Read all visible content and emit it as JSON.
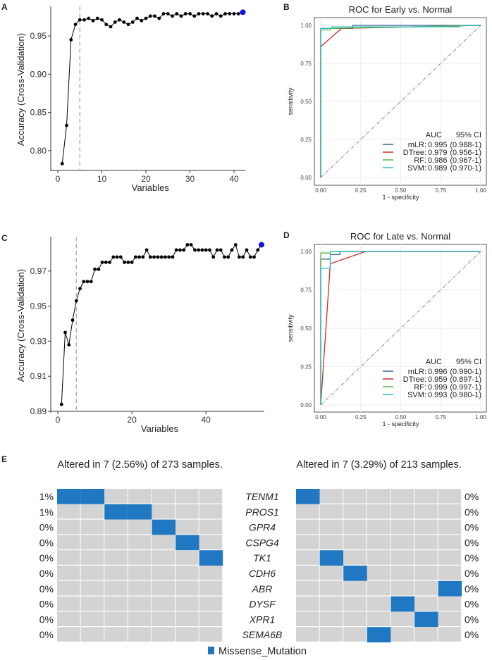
{
  "panel_labels": [
    "A",
    "B",
    "C",
    "D",
    "E"
  ],
  "colors": {
    "point": "#000000",
    "best_point": "#1010e0",
    "mLR": "#3a5f9a",
    "DTree": "#d7262b",
    "RF": "#5bb33a",
    "SVM": "#2bbdc8",
    "mutation": "#1f78c1",
    "empty_cell": "#d3d3d3",
    "reference_line": "#aaaaaa"
  },
  "chart_data": [
    {
      "panel": "A",
      "type": "line",
      "xlabel": "Variables",
      "ylabel": "Accuracy (Cross-Validation)",
      "xlim": [
        0,
        42
      ],
      "ylim": [
        0.775,
        0.985
      ],
      "xticks": [
        0,
        10,
        20,
        30,
        40
      ],
      "yticks": [
        0.8,
        0.85,
        0.9,
        0.95
      ],
      "vline_x": 5,
      "best_x": 42,
      "x": [
        1,
        2,
        3,
        4,
        5,
        6,
        7,
        8,
        9,
        10,
        11,
        12,
        13,
        14,
        15,
        16,
        17,
        18,
        19,
        20,
        21,
        22,
        23,
        24,
        25,
        26,
        27,
        28,
        29,
        30,
        31,
        32,
        33,
        34,
        35,
        36,
        37,
        38,
        39,
        40,
        41,
        42
      ],
      "y": [
        0.783,
        0.833,
        0.945,
        0.965,
        0.971,
        0.971,
        0.973,
        0.97,
        0.973,
        0.971,
        0.965,
        0.962,
        0.968,
        0.971,
        0.968,
        0.965,
        0.968,
        0.973,
        0.97,
        0.973,
        0.976,
        0.976,
        0.973,
        0.979,
        0.979,
        0.976,
        0.979,
        0.976,
        0.979,
        0.979,
        0.976,
        0.979,
        0.979,
        0.979,
        0.976,
        0.979,
        0.976,
        0.979,
        0.979,
        0.979,
        0.979,
        0.981
      ]
    },
    {
      "panel": "B",
      "type": "line",
      "title": "ROC for Early vs. Normal",
      "xlabel": "1 - specificity",
      "ylabel": "sensitivity",
      "xlim": [
        0,
        1
      ],
      "ylim": [
        0,
        1
      ],
      "xticks": [
        "0.00",
        "0.25",
        "0.50",
        "0.75",
        "1.00"
      ],
      "yticks": [
        "0.00",
        "0.25",
        "0.50",
        "0.75",
        "1.00"
      ],
      "grid": true,
      "legend_position": "bottom-right",
      "legend_header": [
        "AUC",
        "95% CI"
      ],
      "series": [
        {
          "name": "mLR",
          "auc": "0.995",
          "ci": "(0.988-1)",
          "points": [
            [
              0,
              0
            ],
            [
              0,
              0.98
            ],
            [
              0.2,
              0.98
            ],
            [
              0.2,
              1
            ],
            [
              1,
              1
            ]
          ]
        },
        {
          "name": "DTree",
          "auc": "0.979",
          "ci": "(0.956-1)",
          "points": [
            [
              0,
              0
            ],
            [
              0,
              0.86
            ],
            [
              0.13,
              0.98
            ],
            [
              1,
              1
            ]
          ]
        },
        {
          "name": "RF",
          "auc": "0.986",
          "ci": "(0.967-1)",
          "points": [
            [
              0,
              0
            ],
            [
              0,
              0.97
            ],
            [
              0.06,
              0.97
            ],
            [
              0.06,
              0.98
            ],
            [
              1,
              1
            ]
          ]
        },
        {
          "name": "SVM",
          "auc": "0.989",
          "ci": "(0.970-1)",
          "points": [
            [
              0,
              0
            ],
            [
              0,
              0.98
            ],
            [
              0.07,
              0.98
            ],
            [
              0.07,
              0.99
            ],
            [
              0.87,
              0.99
            ],
            [
              0.87,
              1
            ],
            [
              1,
              1
            ]
          ]
        }
      ]
    },
    {
      "panel": "C",
      "type": "line",
      "xlabel": "Variables",
      "ylabel": "Accuracy (Cross-Validation)",
      "xlim": [
        0,
        55
      ],
      "ylim": [
        0.89,
        0.988
      ],
      "xticks": [
        0,
        20,
        40
      ],
      "yticks": [
        0.89,
        0.91,
        0.93,
        0.95,
        0.97
      ],
      "vline_x": 5,
      "best_x": 55,
      "x": [
        1,
        2,
        3,
        4,
        5,
        6,
        7,
        8,
        9,
        10,
        11,
        12,
        13,
        14,
        15,
        16,
        17,
        18,
        19,
        20,
        21,
        22,
        23,
        24,
        25,
        26,
        27,
        28,
        29,
        30,
        31,
        32,
        33,
        34,
        35,
        36,
        37,
        38,
        39,
        40,
        41,
        42,
        43,
        44,
        45,
        46,
        47,
        48,
        49,
        50,
        51,
        52,
        53,
        54,
        55
      ],
      "y": [
        0.894,
        0.935,
        0.928,
        0.942,
        0.953,
        0.96,
        0.964,
        0.964,
        0.964,
        0.971,
        0.971,
        0.975,
        0.975,
        0.975,
        0.978,
        0.978,
        0.978,
        0.975,
        0.975,
        0.975,
        0.978,
        0.978,
        0.978,
        0.982,
        0.978,
        0.978,
        0.978,
        0.978,
        0.978,
        0.978,
        0.978,
        0.982,
        0.982,
        0.982,
        0.985,
        0.985,
        0.982,
        0.982,
        0.982,
        0.982,
        0.982,
        0.978,
        0.982,
        0.982,
        0.978,
        0.978,
        0.982,
        0.985,
        0.978,
        0.978,
        0.982,
        0.978,
        0.978,
        0.982,
        0.985
      ]
    },
    {
      "panel": "D",
      "type": "line",
      "title": "ROC for Late vs. Normal",
      "xlabel": "1 - specificity",
      "ylabel": "sensitivity",
      "xlim": [
        0,
        1
      ],
      "ylim": [
        0,
        1
      ],
      "xticks": [
        "0.00",
        "0.25",
        "0.50",
        "0.75",
        "1.00"
      ],
      "yticks": [
        "0.00",
        "0.25",
        "0.50",
        "0.75",
        "1.00"
      ],
      "grid": true,
      "legend_position": "bottom-right",
      "legend_header": [
        "AUC",
        "95% CI"
      ],
      "series": [
        {
          "name": "mLR",
          "auc": "0.996",
          "ci": "(0.990-1)",
          "points": [
            [
              0,
              0
            ],
            [
              0,
              0.95
            ],
            [
              0.06,
              0.95
            ],
            [
              0.06,
              0.98
            ],
            [
              0.12,
              0.98
            ],
            [
              0.12,
              1
            ],
            [
              1,
              1
            ]
          ]
        },
        {
          "name": "DTree",
          "auc": "0.959",
          "ci": "(0.897-1)",
          "points": [
            [
              0,
              0
            ],
            [
              0.06,
              0.92
            ],
            [
              0.28,
              1
            ],
            [
              1,
              1
            ]
          ]
        },
        {
          "name": "RF",
          "auc": "0.999",
          "ci": "(0.997-1)",
          "points": [
            [
              0,
              0
            ],
            [
              0,
              0.99
            ],
            [
              0.06,
              0.99
            ],
            [
              0.06,
              1
            ],
            [
              1,
              1
            ]
          ]
        },
        {
          "name": "SVM",
          "auc": "0.993",
          "ci": "(0.980-1)",
          "points": [
            [
              0,
              0
            ],
            [
              0,
              0.89
            ],
            [
              0.06,
              0.89
            ],
            [
              0.06,
              1
            ],
            [
              1,
              1
            ]
          ]
        }
      ]
    },
    {
      "panel": "E",
      "type": "heatmap",
      "genes": [
        "TENM1",
        "PROS1",
        "GPR4",
        "CSPG4",
        "TK1",
        "CDH6",
        "ABR",
        "DYSF",
        "XPR1",
        "SEMA6B"
      ],
      "legend": "Missense_Mutation",
      "left": {
        "title": "Altered in 7 (2.56%) of 273 samples.",
        "columns": 7,
        "percent": [
          "1%",
          "1%",
          "0%",
          "0%",
          "0%",
          "0%",
          "0%",
          "0%",
          "0%",
          "0%"
        ],
        "mutated": [
          [
            0,
            1
          ],
          [
            2,
            3
          ],
          [
            4
          ],
          [
            5
          ],
          [
            6
          ],
          [],
          [],
          [],
          [],
          []
        ]
      },
      "right": {
        "title": "Altered in 7 (3.29%) of 213 samples.",
        "columns": 7,
        "percent": [
          "0%",
          "0%",
          "0%",
          "0%",
          "0%",
          "0%",
          "0%",
          "0%",
          "0%",
          "0%"
        ],
        "mutated": [
          [
            0
          ],
          [],
          [],
          [],
          [
            1
          ],
          [
            2
          ],
          [
            6
          ],
          [
            4
          ],
          [
            5
          ],
          [
            3
          ]
        ]
      }
    }
  ]
}
